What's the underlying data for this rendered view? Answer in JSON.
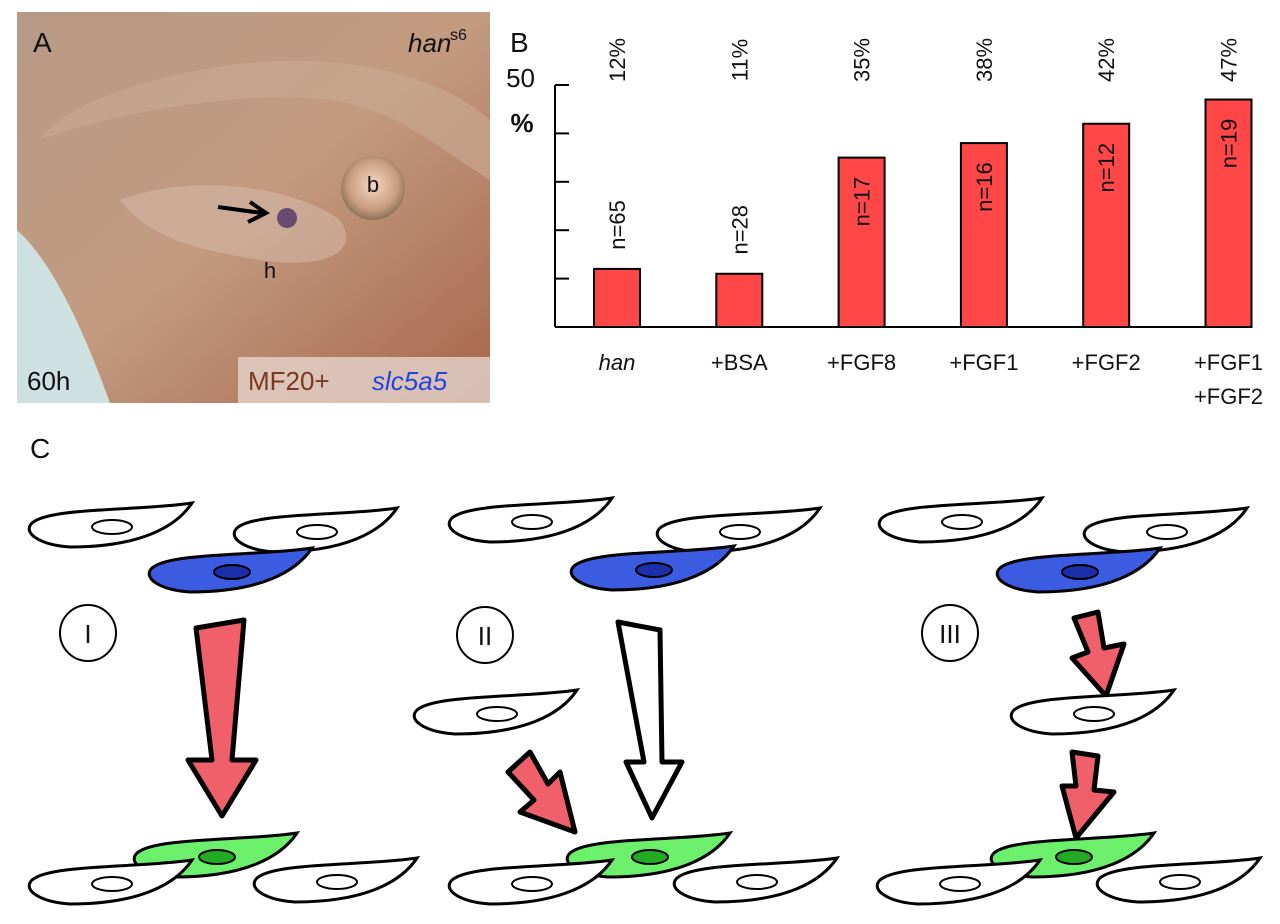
{
  "panel_a": {
    "label": "A",
    "gene": "han",
    "allele": "s6",
    "label_b": "b",
    "label_h": "h",
    "time": "60h",
    "stain_1": "MF20+",
    "stain_2": "slc5a5"
  },
  "chart_data": {
    "type": "bar",
    "panel_label": "B",
    "y_label": "%",
    "categories": [
      "han",
      "+BSA",
      "+FGF8",
      "+FGF1",
      "+FGF2",
      "+FGF1\n+FGF2"
    ],
    "values": [
      12,
      11,
      35,
      38,
      42,
      47
    ],
    "value_labels": [
      "12%",
      "11%",
      "35%",
      "38%",
      "42%",
      "47%"
    ],
    "n_labels": [
      "n=65",
      "n=28",
      "n=17",
      "n=16",
      "n=12",
      "n=19"
    ],
    "color": "#ff4747",
    "ylim": [
      0,
      50
    ],
    "yticks": [
      {
        "value": 0,
        "label": null
      },
      {
        "value": 10,
        "label": null
      },
      {
        "value": 20,
        "label": null
      },
      {
        "value": 30,
        "label": null
      },
      {
        "value": 40,
        "label": null
      },
      50
    ]
  },
  "panel_c": {
    "label": "C",
    "models": [
      "I",
      "II",
      "III"
    ]
  }
}
